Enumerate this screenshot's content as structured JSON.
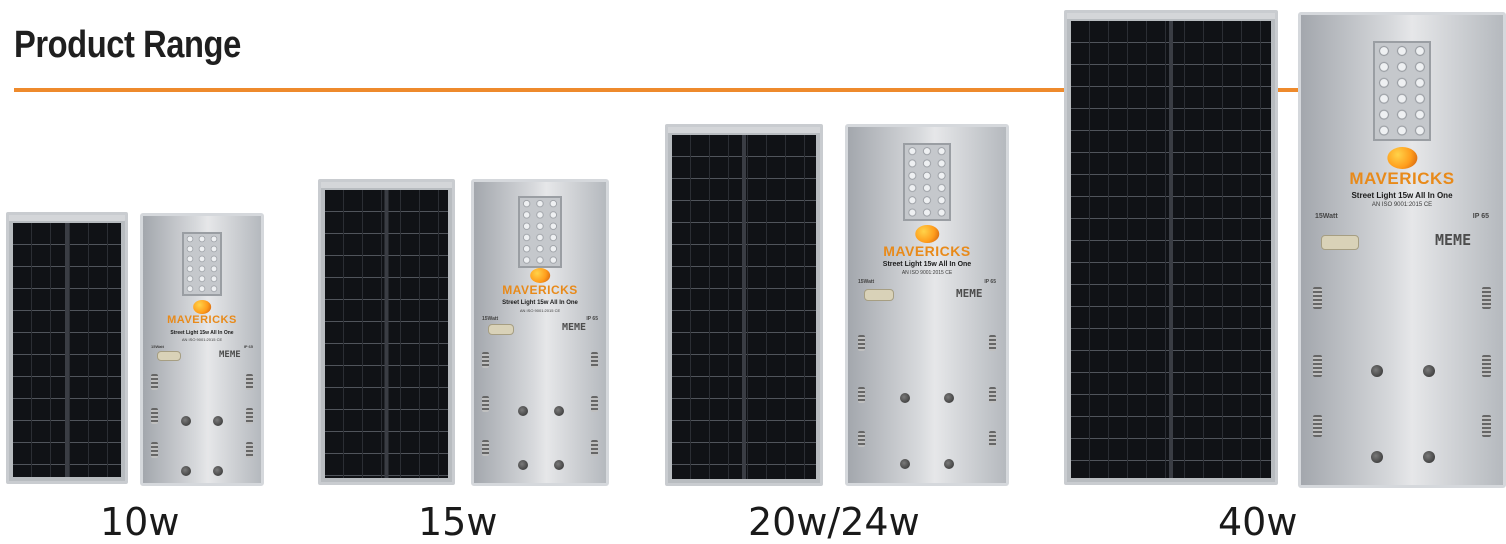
{
  "title": "Product Range",
  "accent_color": "#ee8a2c",
  "brand": {
    "name": "MAVERICKS",
    "subtitle": "Street Light 15w All In One",
    "cert": "AN ISO 9001:2015 CE",
    "wattage_mark": "15Watt",
    "ip_mark": "IP 65",
    "co_brand": "MEME",
    "logo_icon": "sun-logo-icon"
  },
  "products": [
    {
      "label": "10w"
    },
    {
      "label": "15w"
    },
    {
      "label": "20w/24w"
    },
    {
      "label": "40w"
    }
  ]
}
